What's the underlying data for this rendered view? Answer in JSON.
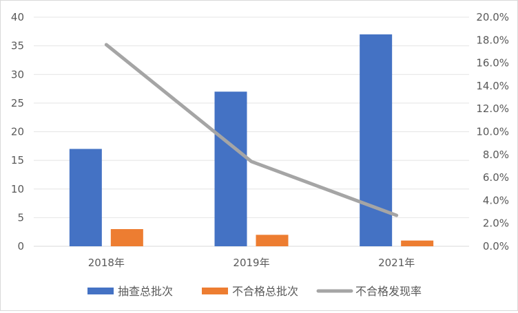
{
  "chart_data": {
    "type": "bar",
    "categories": [
      "2018年",
      "2019年",
      "2021年"
    ],
    "series": [
      {
        "name": "抽查总批次",
        "type": "bar",
        "axis": "left",
        "color": "#4472C4",
        "values": [
          17,
          27,
          37
        ]
      },
      {
        "name": "不合格总批次",
        "type": "bar",
        "axis": "left",
        "color": "#ED7D31",
        "values": [
          3,
          2,
          1
        ]
      },
      {
        "name": "不合格发现率",
        "type": "line",
        "axis": "right",
        "color": "#A5A5A5",
        "values": [
          17.6,
          7.4,
          2.7
        ]
      }
    ],
    "y_left": {
      "range": [
        0,
        40
      ],
      "ticks": [
        "0",
        "5",
        "10",
        "15",
        "20",
        "25",
        "30",
        "35",
        "40"
      ]
    },
    "y_right": {
      "range": [
        0,
        20
      ],
      "ticks": [
        "0.0%",
        "2.0%",
        "4.0%",
        "6.0%",
        "8.0%",
        "10.0%",
        "12.0%",
        "14.0%",
        "16.0%",
        "18.0%",
        "20.0%"
      ]
    },
    "grid": true,
    "legend_position": "bottom"
  }
}
